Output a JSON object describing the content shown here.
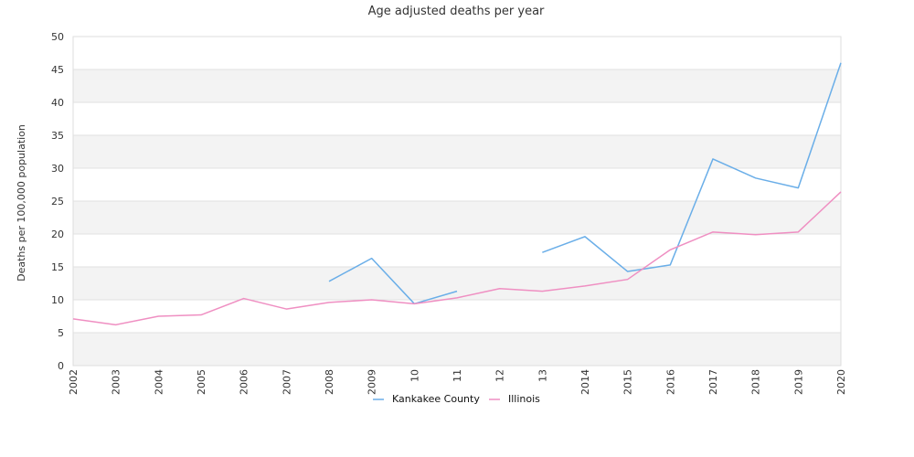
{
  "chart_data": {
    "type": "line",
    "title": "Age adjusted deaths per year",
    "xlabel": "",
    "ylabel": "Deaths per 100,000 population",
    "categories": [
      "2002",
      "2003",
      "2004",
      "2005",
      "2006",
      "2007",
      "2008",
      "2009",
      "2010",
      "2011",
      "2012",
      "2013",
      "2014",
      "2015",
      "2016",
      "2017",
      "2018",
      "2019",
      "2020"
    ],
    "x_tick_labels": [
      "2002",
      "2003",
      "2004",
      "2005",
      "2006",
      "2007",
      "2008",
      "2009",
      "10",
      "11",
      "12",
      "13",
      "2014",
      "2015",
      "2016",
      "2017",
      "2018",
      "2019",
      "2020"
    ],
    "ylim": [
      0,
      50
    ],
    "y_ticks": [
      0,
      5,
      10,
      15,
      20,
      25,
      30,
      35,
      40,
      45,
      50
    ],
    "grid": "alternating horizontal bands",
    "legend_position": "bottom-center",
    "series": [
      {
        "name": "Kankakee County",
        "color": "#6aaee8",
        "values": [
          null,
          null,
          null,
          null,
          null,
          null,
          12.8,
          16.3,
          9.4,
          11.3,
          null,
          17.2,
          19.6,
          14.3,
          15.3,
          31.4,
          28.5,
          27.0,
          46.0
        ]
      },
      {
        "name": "Illinois",
        "color": "#ef8fc2",
        "values": [
          7.1,
          6.2,
          7.5,
          7.7,
          10.2,
          8.6,
          9.6,
          10.0,
          9.4,
          10.3,
          11.7,
          11.3,
          12.1,
          13.1,
          17.6,
          20.3,
          19.9,
          20.3,
          26.4
        ]
      }
    ]
  }
}
